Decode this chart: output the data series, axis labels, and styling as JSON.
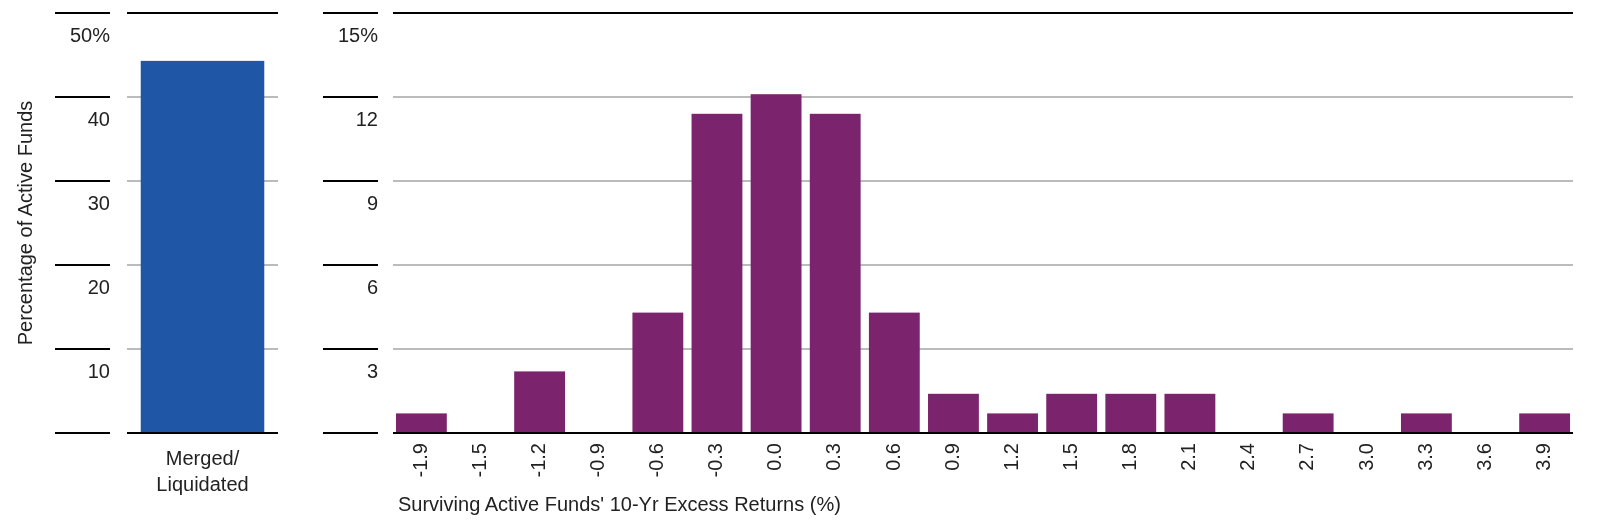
{
  "chart_data": [
    {
      "type": "bar",
      "ylabel": "Percentage of Active Funds",
      "categories": [
        "Merged/\nLiquidated"
      ],
      "values": [
        44.3
      ],
      "color": "#1f57a6",
      "ylim": [
        0,
        50
      ],
      "yticks": [
        {
          "value": 0,
          "label": null
        },
        10,
        20,
        30,
        40,
        {
          "value": 50,
          "label": "50%"
        }
      ],
      "grid": "y"
    },
    {
      "type": "bar",
      "xlabel": "Surviving Active Funds' 10-Yr Excess Returns (%)",
      "categories": [
        "-1.9",
        "-1.5",
        "-1.2",
        "-0.9",
        "-0.6",
        "-0.3",
        "0.0",
        "0.3",
        "0.6",
        "0.9",
        "1.2",
        "1.5",
        "1.8",
        "2.1",
        "2.4",
        "2.7",
        "3.0",
        "3.3",
        "3.6",
        "3.9"
      ],
      "values": [
        0.7,
        0,
        2.2,
        0,
        4.3,
        11.4,
        12.1,
        11.4,
        4.3,
        1.4,
        0.7,
        1.4,
        1.4,
        1.4,
        0,
        0.7,
        0,
        0.7,
        0,
        0.7
      ],
      "color": "#7b246d",
      "ylim": [
        0,
        15
      ],
      "yticks": [
        {
          "value": 0,
          "label": null
        },
        3,
        6,
        9,
        12,
        {
          "value": 15,
          "label": "15%"
        }
      ],
      "grid": "y"
    }
  ]
}
